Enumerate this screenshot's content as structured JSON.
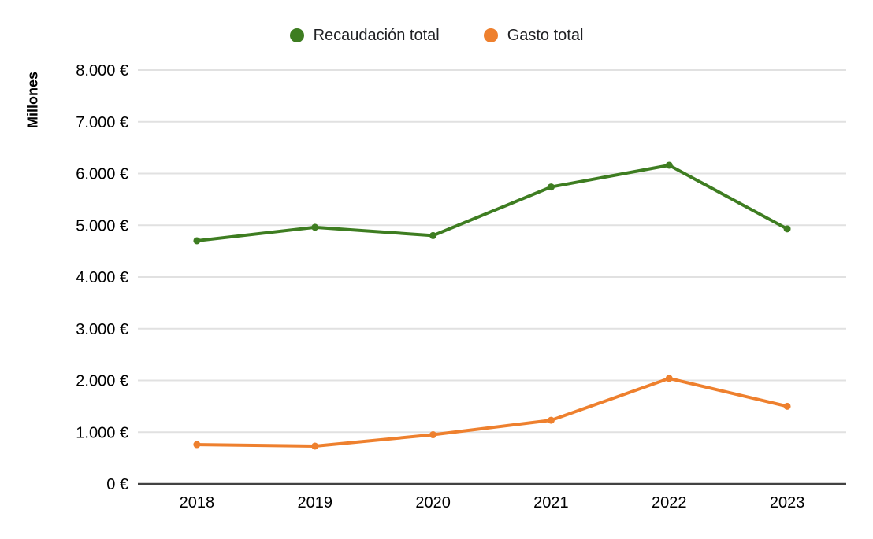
{
  "legend": {
    "items": [
      {
        "label": "Recaudación total",
        "color": "#3e7d21"
      },
      {
        "label": "Gasto total",
        "color": "#ee802e"
      }
    ]
  },
  "chart_data": {
    "type": "line",
    "categories": [
      "2018",
      "2019",
      "2020",
      "2021",
      "2022",
      "2023"
    ],
    "series": [
      {
        "name": "Recaudación total",
        "color": "#3e7d21",
        "values": [
          4700,
          4960,
          4800,
          5740,
          6160,
          4930
        ]
      },
      {
        "name": "Gasto total",
        "color": "#ee802e",
        "values": [
          760,
          730,
          950,
          1230,
          2040,
          1500
        ]
      }
    ],
    "title": "",
    "xlabel": "",
    "ylabel": "Millones",
    "ylim": [
      0,
      8000
    ],
    "y_tick_step": 1000,
    "y_tick_labels": [
      "0 €",
      "1.000 €",
      "2.000 €",
      "3.000 €",
      "4.000 €",
      "5.000 €",
      "6.000 €",
      "7.000 €",
      "8.000 €"
    ],
    "grid": true,
    "legend_position": "top",
    "axis_color": "#424242",
    "grid_color": "#e1e1e1",
    "label_color": "#000000"
  }
}
